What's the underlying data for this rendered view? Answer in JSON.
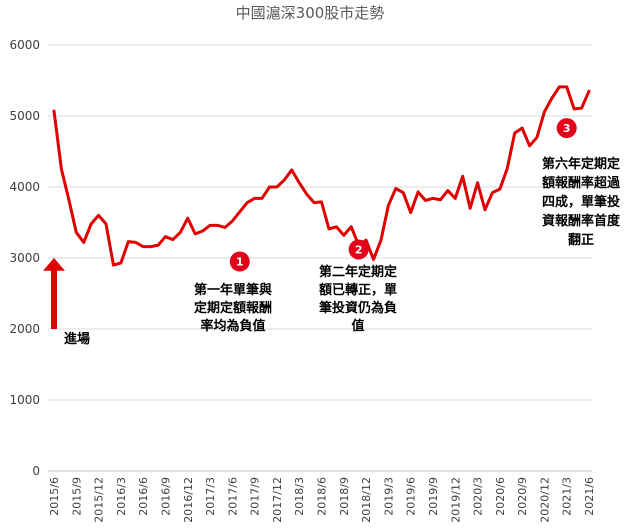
{
  "colors": {
    "line": "#e00000",
    "marker": "#e3001b",
    "grid": "#d9d9d9",
    "arrow": "#e00000"
  },
  "chart_data": {
    "type": "line",
    "title": "中國滬深300股市走勢",
    "xlabel": "",
    "ylabel": "",
    "ylim": [
      0,
      6000
    ],
    "yticks": [
      0,
      1000,
      2000,
      3000,
      4000,
      5000,
      6000
    ],
    "grid": "horizontal",
    "x": [
      "2015/6",
      "2015/7",
      "2015/8",
      "2015/9",
      "2015/10",
      "2015/11",
      "2015/12",
      "2016/1",
      "2016/2",
      "2016/3",
      "2016/4",
      "2016/5",
      "2016/6",
      "2016/7",
      "2016/8",
      "2016/9",
      "2016/10",
      "2016/11",
      "2016/12",
      "2017/1",
      "2017/2",
      "2017/3",
      "2017/4",
      "2017/5",
      "2017/6",
      "2017/7",
      "2017/8",
      "2017/9",
      "2017/10",
      "2017/11",
      "2017/12",
      "2018/1",
      "2018/2",
      "2018/3",
      "2018/4",
      "2018/5",
      "2018/6",
      "2018/7",
      "2018/8",
      "2018/9",
      "2018/10",
      "2018/11",
      "2018/12",
      "2019/1",
      "2019/2",
      "2019/3",
      "2019/4",
      "2019/5",
      "2019/6",
      "2019/7",
      "2019/8",
      "2019/9",
      "2019/10",
      "2019/11",
      "2019/12",
      "2020/1",
      "2020/2",
      "2020/3",
      "2020/4",
      "2020/5",
      "2020/6",
      "2020/7",
      "2020/8",
      "2020/9",
      "2020/10",
      "2020/11",
      "2020/12",
      "2021/1",
      "2021/2",
      "2021/3",
      "2021/4",
      "2021/5",
      "2021/6"
    ],
    "xticks": [
      "2015/6",
      "2015/9",
      "2015/12",
      "2016/3",
      "2016/6",
      "2016/9",
      "2016/12",
      "2017/3",
      "2017/6",
      "2017/9",
      "2017/12",
      "2018/3",
      "2018/6",
      "2018/9",
      "2018/12",
      "2019/3",
      "2019/6",
      "2019/9",
      "2019/12",
      "2020/3",
      "2020/6",
      "2020/9",
      "2020/12",
      "2021/3",
      "2021/6"
    ],
    "series": [
      {
        "values": [
          5070,
          4250,
          3820,
          3360,
          3220,
          3480,
          3600,
          3480,
          2900,
          2930,
          3230,
          3220,
          3160,
          3160,
          3180,
          3300,
          3260,
          3360,
          3560,
          3340,
          3380,
          3460,
          3460,
          3430,
          3520,
          3650,
          3780,
          3840,
          3840,
          4000,
          4000,
          4100,
          4240,
          4060,
          3900,
          3780,
          3790,
          3410,
          3440,
          3320,
          3440,
          3180,
          3250,
          2980,
          3250,
          3740,
          3980,
          3920,
          3640,
          3930,
          3810,
          3840,
          3820,
          3950,
          3840,
          4150,
          3700,
          4060,
          3680,
          3920,
          3970,
          4260,
          4760,
          4830,
          4580,
          4700,
          5060,
          5250,
          5410,
          5410,
          5100,
          5110,
          5350
        ]
      }
    ],
    "annotations": [
      {
        "marker": "1",
        "x": "2017/7",
        "y": 2950,
        "text": [
          "第一年單筆與",
          "定期定額報酬",
          "率均為負值"
        ]
      },
      {
        "marker": "2",
        "x": "2018/11",
        "y": 3120,
        "text": [
          "第二年定期定",
          "額已轉正，單",
          "筆投資仍為負",
          "值"
        ]
      },
      {
        "marker": "3",
        "x": "2021/3",
        "y": 4830,
        "text": [
          "第六年定期定",
          "額報酬率超過",
          "四成，單筆投",
          "資報酬率首度",
          "翻正"
        ]
      },
      {
        "arrow": true,
        "x": "2015/6",
        "text": [
          "進場"
        ]
      }
    ]
  }
}
